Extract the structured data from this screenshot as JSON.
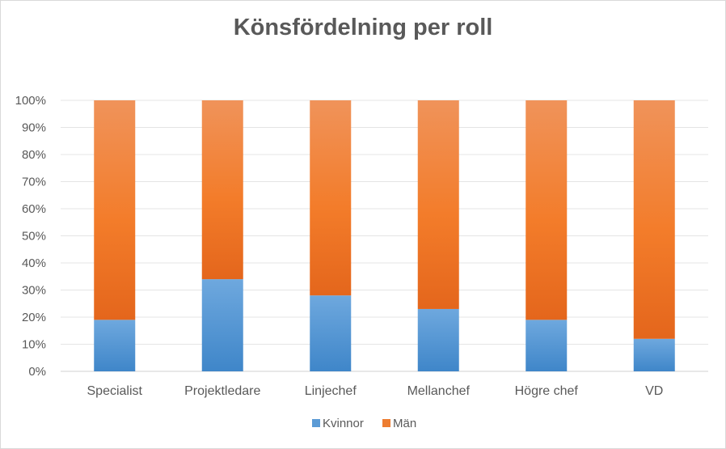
{
  "chart_data": {
    "type": "bar",
    "stacked": true,
    "title": "Könsfördelning per roll",
    "categories": [
      "Specialist",
      "Projektledare",
      "Linjechef",
      "Mellanchef",
      "Högre chef",
      "VD"
    ],
    "series": [
      {
        "name": "Kvinnor",
        "values": [
          19,
          34,
          28,
          23,
          19,
          12
        ],
        "color": "#5b9bd5"
      },
      {
        "name": "Män",
        "values": [
          81,
          66,
          72,
          77,
          81,
          88
        ],
        "color": "#ed7d31"
      }
    ],
    "yticks": [
      "0%",
      "10%",
      "20%",
      "30%",
      "40%",
      "50%",
      "60%",
      "70%",
      "80%",
      "90%",
      "100%"
    ],
    "ylim": [
      0,
      100
    ],
    "grid": true,
    "legend_position": "bottom"
  }
}
